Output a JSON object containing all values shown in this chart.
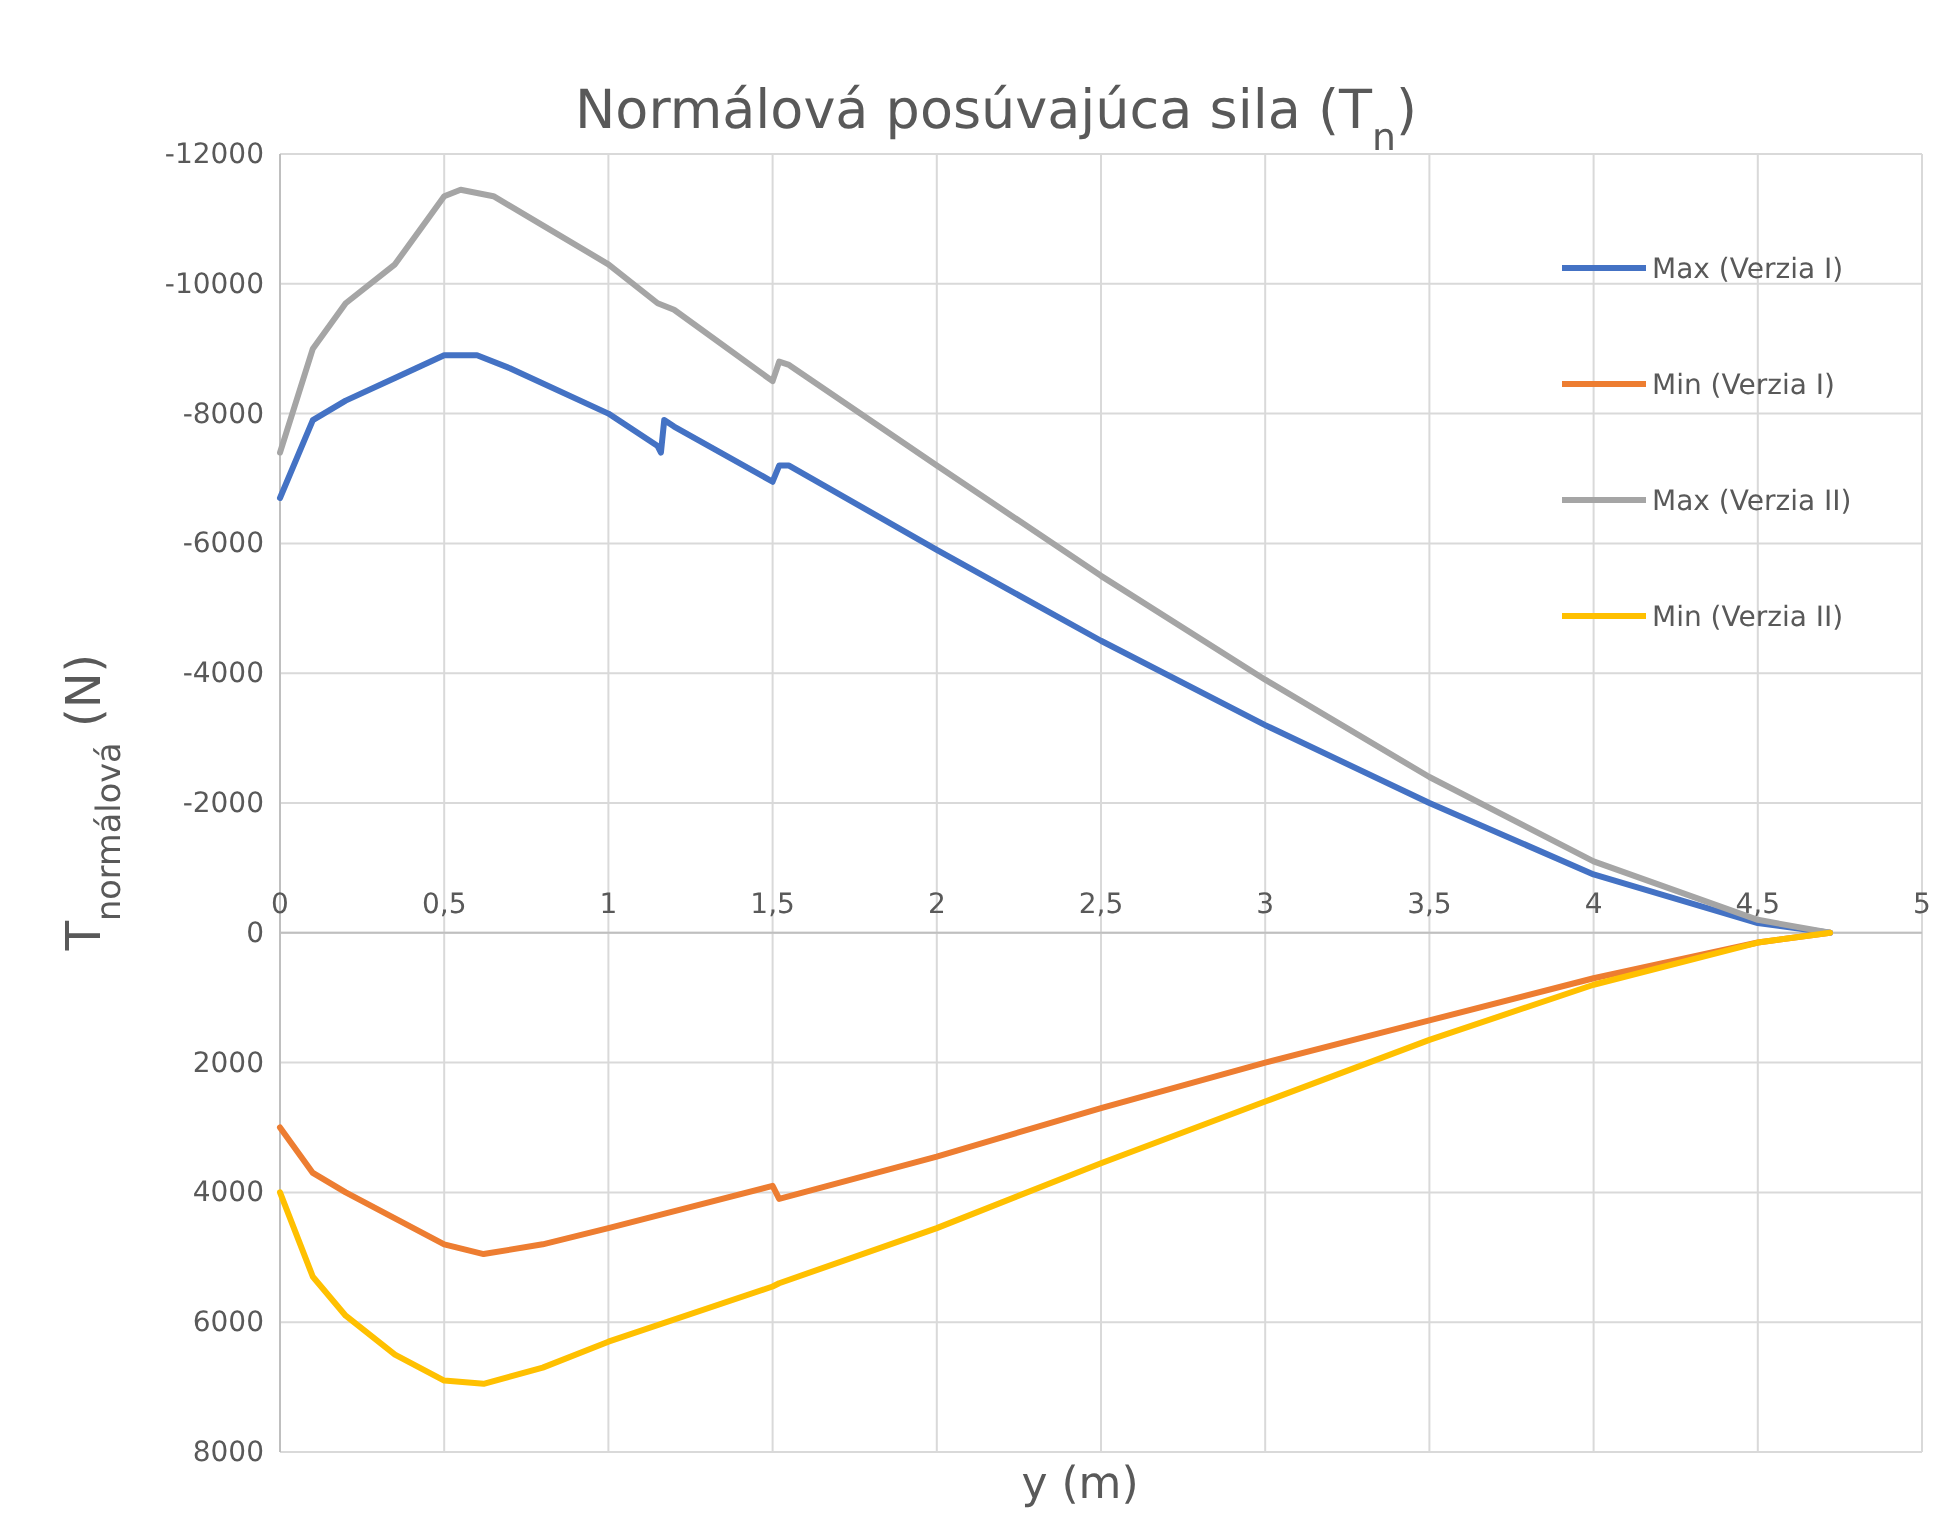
{
  "chart_data": {
    "type": "line",
    "title": "Normálová posúvajúca sila (T$_{n}$)",
    "xlabel": "y (m)",
    "ylabel": "T$_{normálová}$ (N)",
    "xlim": [
      0,
      5
    ],
    "xticks": [
      0,
      {
        "value": 0.5,
        "label": "0,5"
      },
      1,
      {
        "value": 1.5,
        "label": "1,5"
      },
      2,
      {
        "value": 2.5,
        "label": "2,5"
      },
      3,
      {
        "value": 3.5,
        "label": "3,5"
      },
      4,
      {
        "value": 4.5,
        "label": "4,5"
      },
      5
    ],
    "ylim": [
      8000,
      -12000
    ],
    "yticks": [
      -12000,
      -10000,
      -8000,
      -6000,
      -4000,
      -2000,
      0,
      2000,
      4000,
      6000,
      8000
    ],
    "grid": true,
    "legend": "top right",
    "line_style": "solid",
    "marker": "none",
    "series": [
      {
        "name": "Max (Verzia I)",
        "color": "#4472c4",
        "x": [
          0,
          0.1,
          0.2,
          0.35,
          0.5,
          0.6,
          0.7,
          1.0,
          1.15,
          1.16,
          1.17,
          1.2,
          1.5,
          1.52,
          1.55,
          2.0,
          2.5,
          3.0,
          3.5,
          4.0,
          4.5,
          4.72
        ],
        "values": [
          -6700,
          -7900,
          -8200,
          -8550,
          -8900,
          -8900,
          -8700,
          -8000,
          -7500,
          -7400,
          -7900,
          -7800,
          -6950,
          -7200,
          -7200,
          -5900,
          -4500,
          -3200,
          -2000,
          -900,
          -150,
          0
        ]
      },
      {
        "name": "Min (Verzia I)",
        "color": "#ed7d31",
        "x": [
          0,
          0.1,
          0.2,
          0.35,
          0.5,
          0.62,
          0.8,
          1.0,
          1.5,
          1.52,
          2.0,
          2.5,
          3.0,
          3.5,
          4.0,
          4.5,
          4.72
        ],
        "values": [
          3000,
          3700,
          4000,
          4400,
          4800,
          4950,
          4800,
          4550,
          3900,
          4100,
          3450,
          2700,
          2000,
          1350,
          700,
          150,
          0
        ]
      },
      {
        "name": "Max (Verzia II)",
        "color": "#a5a5a5",
        "x": [
          0,
          0.1,
          0.2,
          0.35,
          0.45,
          0.5,
          0.55,
          0.65,
          0.8,
          1.0,
          1.15,
          1.2,
          1.5,
          1.52,
          1.55,
          2.0,
          2.5,
          3.0,
          3.5,
          4.0,
          4.5,
          4.72
        ],
        "values": [
          -7400,
          -9000,
          -9700,
          -10300,
          -11000,
          -11350,
          -11450,
          -11350,
          -10900,
          -10300,
          -9700,
          -9600,
          -8500,
          -8800,
          -8750,
          -7200,
          -5500,
          -3900,
          -2400,
          -1100,
          -200,
          0
        ]
      },
      {
        "name": "Min (Verzia II)",
        "color": "#ffc000",
        "x": [
          0,
          0.1,
          0.2,
          0.35,
          0.5,
          0.62,
          0.8,
          1.0,
          1.5,
          1.52,
          2.0,
          2.5,
          3.0,
          3.5,
          4.0,
          4.5,
          4.72
        ],
        "values": [
          4000,
          5300,
          5900,
          6500,
          6900,
          6950,
          6700,
          6300,
          5450,
          5400,
          4550,
          3550,
          2600,
          1650,
          800,
          150,
          0
        ]
      }
    ]
  }
}
